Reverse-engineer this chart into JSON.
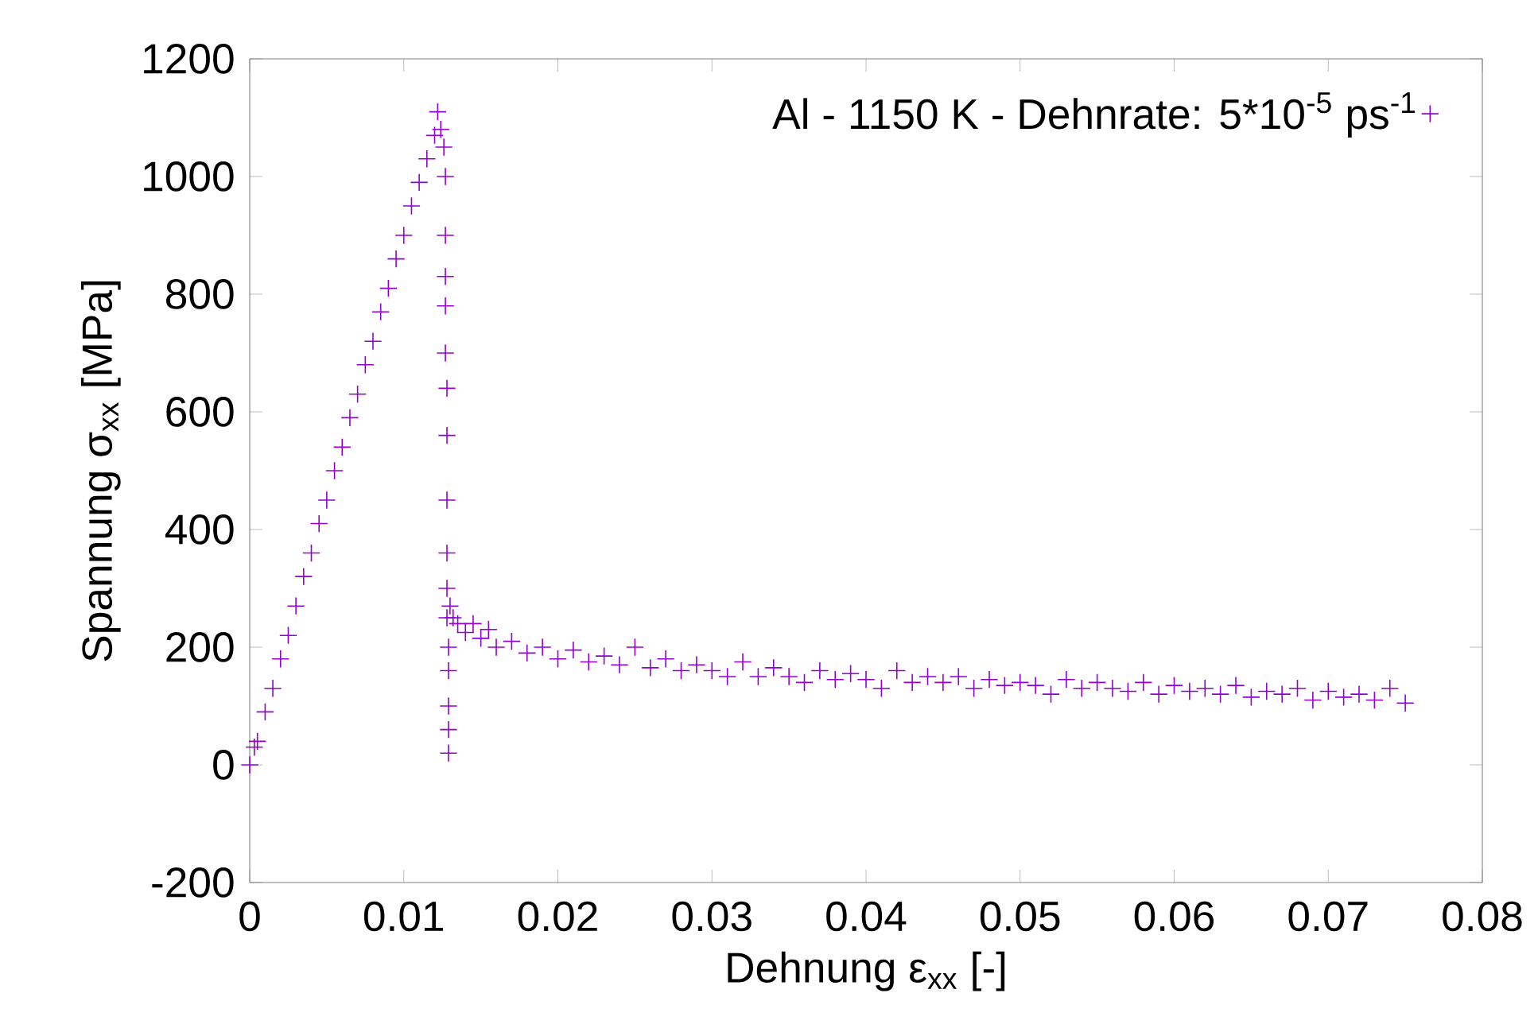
{
  "chart_data": {
    "type": "scatter",
    "xlabel": "Dehnung ε$_{xx}$ [-]",
    "ylabel": "Spannung σ$_{xx}$ [MPa]",
    "legend": "top right",
    "marker": "cross",
    "grid": false,
    "xlim": [
      0,
      0.08
    ],
    "ylim": [
      -200,
      1200
    ],
    "xticks": [
      0,
      0.01,
      0.02,
      0.03,
      0.04,
      0.05,
      0.06,
      0.07,
      0.08
    ],
    "yticks": [
      -200,
      0,
      200,
      400,
      600,
      800,
      1000,
      1200
    ],
    "series": [
      {
        "name": "Al - 1150 K - Dehnrate: 5*10$^{-5}$ ps$^{-1}$",
        "color": "#9400d3",
        "x": [
          0,
          0.0003,
          0.0005,
          0.001,
          0.0015,
          0.002,
          0.0025,
          0.003,
          0.0035,
          0.004,
          0.0045,
          0.005,
          0.0055,
          0.006,
          0.0065,
          0.007,
          0.0075,
          0.008,
          0.0085,
          0.009,
          0.0095,
          0.01,
          0.0105,
          0.011,
          0.0115,
          0.012,
          0.0122,
          0.0124,
          0.0126,
          0.0127,
          0.0127,
          0.0127,
          0.0127,
          0.0127,
          0.0128,
          0.0128,
          0.0128,
          0.0128,
          0.0128,
          0.0128,
          0.0129,
          0.0129,
          0.0129,
          0.0129,
          0.0129,
          0.013,
          0.0132,
          0.0135,
          0.014,
          0.0145,
          0.015,
          0.0155,
          0.016,
          0.017,
          0.018,
          0.019,
          0.02,
          0.021,
          0.022,
          0.023,
          0.024,
          0.025,
          0.026,
          0.027,
          0.028,
          0.029,
          0.03,
          0.031,
          0.032,
          0.033,
          0.034,
          0.035,
          0.036,
          0.037,
          0.038,
          0.039,
          0.04,
          0.041,
          0.042,
          0.043,
          0.044,
          0.045,
          0.046,
          0.047,
          0.048,
          0.049,
          0.05,
          0.051,
          0.052,
          0.053,
          0.054,
          0.055,
          0.056,
          0.057,
          0.058,
          0.059,
          0.06,
          0.061,
          0.062,
          0.063,
          0.064,
          0.065,
          0.066,
          0.067,
          0.068,
          0.069,
          0.07,
          0.071,
          0.072,
          0.073,
          0.074,
          0.075
        ],
        "values": [
          0,
          30,
          40,
          90,
          130,
          180,
          220,
          270,
          320,
          360,
          410,
          450,
          500,
          540,
          590,
          630,
          680,
          720,
          770,
          810,
          860,
          900,
          950,
          990,
          1030,
          1070,
          1110,
          1080,
          1050,
          1000,
          900,
          830,
          780,
          700,
          640,
          560,
          450,
          360,
          300,
          250,
          200,
          160,
          100,
          60,
          20,
          270,
          250,
          240,
          225,
          240,
          215,
          230,
          200,
          210,
          190,
          200,
          180,
          195,
          175,
          185,
          170,
          200,
          165,
          180,
          160,
          170,
          160,
          150,
          175,
          150,
          165,
          150,
          140,
          160,
          145,
          155,
          145,
          130,
          160,
          140,
          150,
          140,
          150,
          130,
          145,
          135,
          140,
          135,
          120,
          145,
          130,
          140,
          130,
          125,
          140,
          120,
          135,
          125,
          130,
          120,
          135,
          115,
          125,
          120,
          130,
          110,
          125,
          115,
          120,
          110,
          130,
          105
        ]
      }
    ]
  }
}
